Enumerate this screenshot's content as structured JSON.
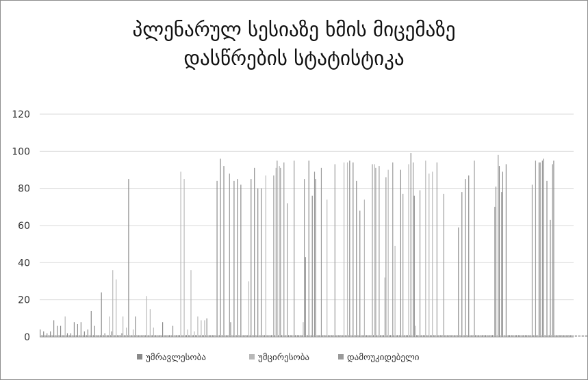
{
  "chart_data": {
    "type": "bar",
    "title_lines": [
      "პლენარულ სესიაზე ხმის მიცემაზე",
      "დასწრების სტატისტიკა"
    ],
    "xlabel": "",
    "ylabel": "",
    "ylim": [
      0,
      120
    ],
    "yticks": [
      0,
      20,
      40,
      60,
      80,
      100,
      120
    ],
    "grid": true,
    "legend_position": "bottom",
    "series": [
      {
        "name": "უმრავლესობა",
        "color": "#8a8a8a",
        "values": [
          4,
          3,
          2,
          3,
          9,
          6,
          6,
          1,
          2,
          2,
          8,
          7,
          8,
          3,
          4,
          14,
          6,
          1,
          24,
          2,
          1,
          3,
          1,
          1,
          2,
          1,
          85,
          1,
          11,
          1,
          1,
          1,
          1,
          1,
          1,
          1,
          8,
          1,
          1,
          6,
          1,
          1,
          1,
          1,
          1,
          1,
          1,
          1,
          1,
          10,
          1,
          1,
          84,
          96,
          92,
          1,
          8,
          84,
          85,
          82,
          1,
          1,
          85,
          91,
          80,
          80,
          1,
          1,
          1,
          1,
          1,
          1,
          1,
          1,
          1,
          1,
          1,
          1,
          43,
          95,
          76,
          85,
          1,
          1,
          1,
          1,
          1,
          1,
          1,
          1,
          1,
          95,
          94,
          84,
          68,
          1,
          1,
          1,
          1,
          1,
          1,
          1,
          1,
          1,
          1,
          1,
          90,
          1,
          1,
          99,
          76,
          1,
          1,
          1,
          1,
          1,
          1,
          1,
          1,
          1,
          1,
          1,
          1,
          59,
          78,
          85,
          87,
          1,
          1,
          1,
          1,
          1,
          1,
          1,
          81,
          92,
          89,
          93,
          1,
          1,
          1,
          1,
          1,
          1,
          1,
          1,
          1,
          94,
          96,
          84,
          63,
          95,
          1,
          1,
          1,
          1,
          1
        ]
      },
      {
        "name": "უმცირესობა",
        "color": "#b8b8b8",
        "values": [
          1,
          1,
          1,
          1,
          1,
          1,
          1,
          11,
          1,
          1,
          1,
          1,
          1,
          1,
          1,
          1,
          1,
          1,
          1,
          1,
          11,
          36,
          31,
          1,
          11,
          5,
          1,
          4,
          1,
          1,
          1,
          22,
          15,
          5,
          1,
          1,
          1,
          1,
          1,
          1,
          1,
          89,
          85,
          4,
          36,
          3,
          11,
          9,
          9,
          1,
          1,
          1,
          1,
          1,
          1,
          1,
          1,
          1,
          1,
          1,
          1,
          30,
          1,
          1,
          1,
          1,
          87,
          1,
          1,
          91,
          92,
          1,
          1,
          1,
          1,
          1,
          1,
          8,
          1,
          1,
          1,
          1,
          1,
          1,
          74,
          1,
          1,
          1,
          1,
          94,
          94,
          1,
          1,
          1,
          1,
          74,
          1,
          1,
          93,
          1,
          1,
          32,
          90,
          1,
          49,
          1,
          1,
          1,
          93,
          1,
          6,
          1,
          1,
          95,
          88,
          89,
          1,
          1,
          1,
          1,
          1,
          1,
          1,
          1,
          1,
          1,
          1,
          1,
          1,
          1,
          1,
          1,
          1,
          1,
          1,
          1,
          1,
          1,
          1,
          1,
          1,
          1,
          1,
          1,
          1,
          1,
          1,
          1,
          1,
          1,
          1,
          1,
          1,
          1,
          1,
          1,
          1,
          1,
          1,
          1,
          1,
          1
        ]
      },
      {
        "name": "დამოუკიდებელი",
        "color": "#9a9a9a",
        "values": [
          1,
          1,
          1,
          1,
          1,
          1,
          1,
          1,
          1,
          1,
          1,
          1,
          1,
          1,
          1,
          1,
          1,
          1,
          1,
          1,
          1,
          1,
          1,
          1,
          1,
          1,
          1,
          1,
          1,
          1,
          1,
          1,
          1,
          1,
          1,
          1,
          1,
          1,
          1,
          1,
          1,
          1,
          1,
          1,
          1,
          1,
          1,
          1,
          1,
          1,
          1,
          1,
          1,
          1,
          1,
          88,
          1,
          1,
          1,
          1,
          1,
          1,
          1,
          1,
          1,
          1,
          1,
          1,
          87,
          95,
          91,
          94,
          72,
          1,
          95,
          1,
          1,
          85,
          1,
          1,
          89,
          1,
          91,
          1,
          1,
          1,
          93,
          1,
          1,
          1,
          1,
          1,
          1,
          1,
          1,
          1,
          1,
          93,
          91,
          92,
          1,
          86,
          1,
          94,
          1,
          1,
          77,
          1,
          1,
          94,
          1,
          79,
          1,
          1,
          1,
          1,
          94,
          1,
          77,
          1,
          1,
          1,
          1,
          1,
          1,
          1,
          1,
          95,
          1,
          1,
          1,
          1,
          1,
          70,
          98,
          78,
          1,
          1,
          1,
          1,
          1,
          1,
          1,
          1,
          82,
          95,
          94,
          95,
          1,
          1,
          93,
          1,
          1,
          1,
          1,
          1,
          1,
          1,
          1,
          1,
          1,
          1,
          92,
          91,
          94,
          60,
          45,
          80
        ]
      }
    ]
  }
}
